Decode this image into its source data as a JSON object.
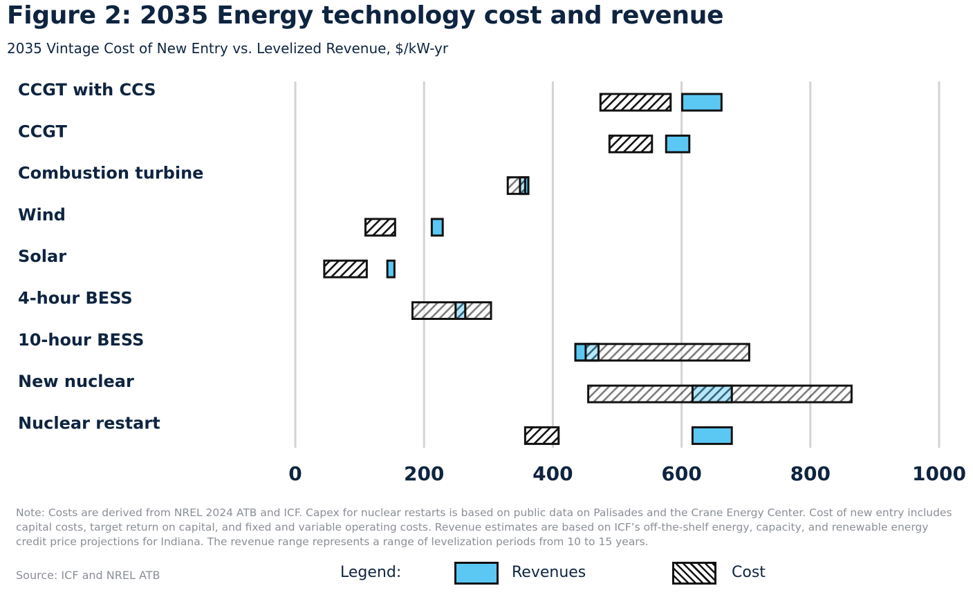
{
  "title": "Figure 2: 2035 Energy technology cost and revenue",
  "subtitle": "2035 Vintage Cost of New Entry vs. Levelized Revenue, $/kW-yr",
  "chart_data": {
    "type": "range-bar",
    "categories": [
      "CCGT with CCS",
      "CCGT",
      "Combustion turbine",
      "Wind",
      "Solar",
      "4-hour BESS",
      "10-hour BESS",
      "New nuclear",
      "Nuclear restart"
    ],
    "series": [
      {
        "name": "Revenues",
        "ranges": [
          [
            601,
            662
          ],
          [
            576,
            612
          ],
          [
            349,
            362
          ],
          [
            212,
            229
          ],
          [
            143,
            154
          ],
          [
            249,
            264
          ],
          [
            435,
            471
          ],
          [
            617,
            678
          ],
          [
            617,
            678
          ]
        ]
      },
      {
        "name": "Cost",
        "ranges": [
          [
            474,
            583
          ],
          [
            488,
            554
          ],
          [
            330,
            357
          ],
          [
            109,
            155
          ],
          [
            45,
            111
          ],
          [
            182,
            304
          ],
          [
            451,
            705
          ],
          [
            455,
            864
          ],
          [
            357,
            409
          ]
        ]
      }
    ],
    "xlim": [
      0,
      1000
    ],
    "xticks": [
      "0",
      "200",
      "400",
      "600",
      "800",
      "1000"
    ],
    "grid": true,
    "colors": {
      "revenue": "#5bc8f3",
      "cost_hatch": "#111111"
    }
  },
  "note": "Note: Costs are derived from NREL 2024 ATB and ICF. Capex for nuclear restarts is based on public data on Palisades and the Crane Energy Center. Cost of new entry includes capital costs, target return on capital, and fixed and variable operating costs. Revenue estimates are based on ICF’s off-the-shelf energy, capacity, and renewable energy credit price projections for Indiana. The revenue range represents a range of levelization periods from 10 to 15 years.",
  "source": "Source: ICF and NREL ATB",
  "legend": {
    "label": "Legend:",
    "revenues": "Revenues",
    "cost": "Cost"
  }
}
